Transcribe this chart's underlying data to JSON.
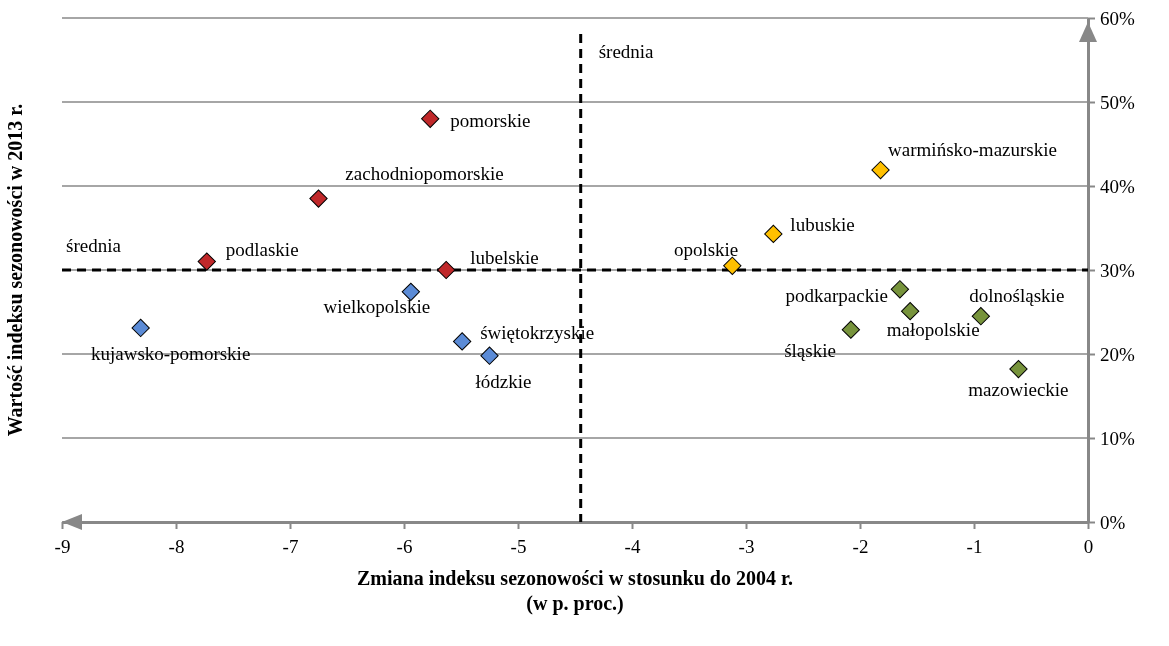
{
  "chart_data": {
    "type": "scatter",
    "xlabel": "Zmiana indeksu sezonowości w stosunku do 2004 r.\n(w p. proc.)",
    "ylabel": "Wartość indeksu sezonowości w 2013 r.",
    "xlim": [
      -9,
      0
    ],
    "xticks": [
      -9,
      -8,
      -7,
      -6,
      -5,
      -4,
      -3,
      -2,
      -1,
      0
    ],
    "ylim": [
      0,
      60
    ],
    "yticks": [
      {
        "value": 0,
        "label": "0%"
      },
      {
        "value": 10,
        "label": "10%"
      },
      {
        "value": 20,
        "label": "20%"
      },
      {
        "value": 30,
        "label": "30%"
      },
      {
        "value": 40,
        "label": "40%"
      },
      {
        "value": 50,
        "label": "50%"
      },
      {
        "value": 60,
        "label": "60%"
      }
    ],
    "grid": "y",
    "marker": "diamond",
    "series": [
      {
        "color": "#c0282a",
        "x": [
          -5.77,
          -6.75,
          -7.73,
          -5.63
        ],
        "values": [
          48,
          38.5,
          31,
          30
        ]
      },
      {
        "color": "#5b8bd6",
        "x": [
          -5.94,
          -8.31,
          -5.49,
          -5.25
        ],
        "values": [
          27.4,
          23.1,
          21.5,
          19.8
        ]
      },
      {
        "color": "#ffc000",
        "x": [
          -3.12,
          -2.76,
          -1.82
        ],
        "values": [
          30.5,
          34.3,
          41.9
        ]
      },
      {
        "color": "#77933c",
        "x": [
          -1.65,
          -1.56,
          -2.08,
          -0.94,
          -0.61
        ],
        "values": [
          27.7,
          25.1,
          22.9,
          24.5,
          18.2
        ]
      }
    ],
    "ref_lines": [
      {
        "axis": "x",
        "value": -4.45,
        "label": "średnia",
        "line_style": "dashed"
      },
      {
        "axis": "y",
        "value": 30,
        "label": "średnia",
        "line_style": "dashed"
      }
    ],
    "annotations": [
      {
        "text": "pomorskie",
        "x": -5.77,
        "y": 48
      },
      {
        "text": "zachodniopomorskie",
        "x": -6.75,
        "y": 38.5
      },
      {
        "text": "podlaskie",
        "x": -7.73,
        "y": 31
      },
      {
        "text": "lubelskie",
        "x": -5.63,
        "y": 30
      },
      {
        "text": "wielkopolskie",
        "x": -5.94,
        "y": 27.4
      },
      {
        "text": "kujawsko-pomorskie",
        "x": -8.31,
        "y": 23.1
      },
      {
        "text": "świętokrzyskie",
        "x": -5.49,
        "y": 21.5
      },
      {
        "text": "łódzkie",
        "x": -5.25,
        "y": 19.8
      },
      {
        "text": "opolskie",
        "x": -3.12,
        "y": 30.5
      },
      {
        "text": "lubuskie",
        "x": -2.76,
        "y": 34.3
      },
      {
        "text": "warmińsko-mazurskie",
        "x": -1.82,
        "y": 41.9
      },
      {
        "text": "podkarpackie",
        "x": -1.65,
        "y": 27.7
      },
      {
        "text": "małopolskie",
        "x": -1.56,
        "y": 25.1
      },
      {
        "text": "śląskie",
        "x": -2.08,
        "y": 22.9
      },
      {
        "text": "dolnośląskie",
        "x": -0.94,
        "y": 24.5
      },
      {
        "text": "mazowieckie",
        "x": -0.61,
        "y": 18.2
      }
    ]
  }
}
